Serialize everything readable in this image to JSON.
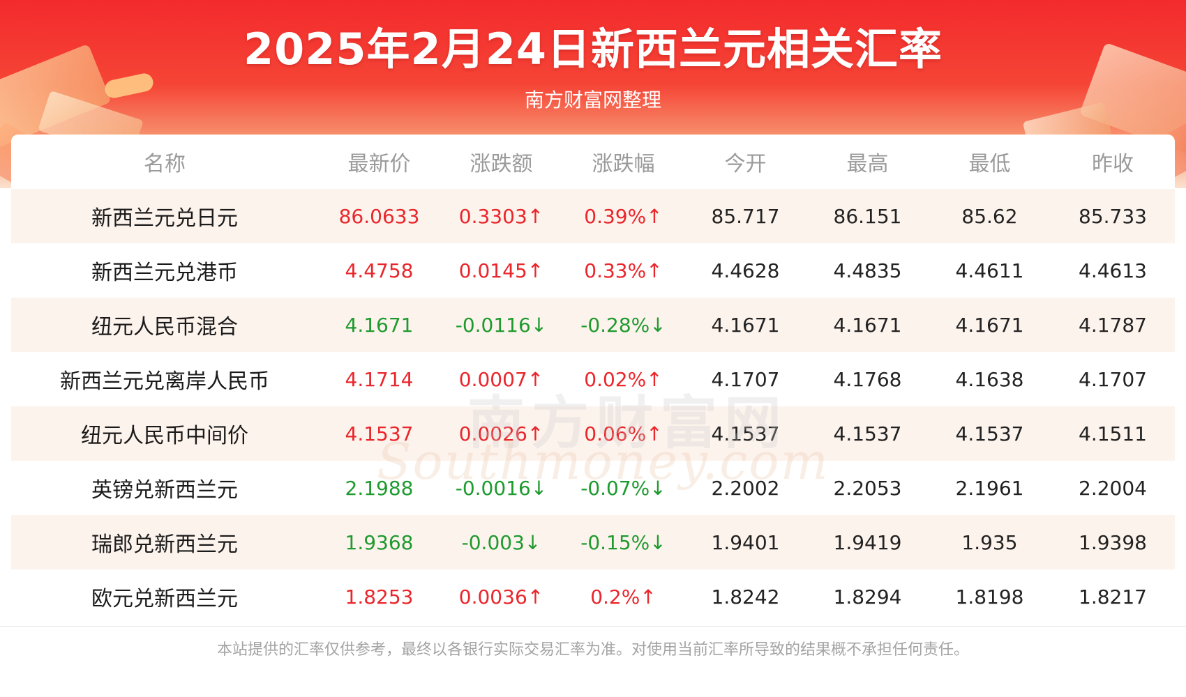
{
  "header": {
    "title": "2025年2月24日新西兰元相关汇率",
    "subtitle": "南方财富网整理"
  },
  "colors": {
    "up": "#e9262b",
    "down": "#1e9a2e",
    "neutral": "#222222"
  },
  "table": {
    "columns": [
      "名称",
      "最新价",
      "涨跌额",
      "涨跌幅",
      "今开",
      "最高",
      "最低",
      "昨收"
    ],
    "rows": [
      {
        "name": "新西兰元兑日元",
        "latest": "86.0633",
        "change": "0.3303↑",
        "pct": "0.39%↑",
        "open": "85.717",
        "high": "86.151",
        "low": "85.62",
        "prev": "85.733",
        "dir": "up"
      },
      {
        "name": "新西兰元兑港币",
        "latest": "4.4758",
        "change": "0.0145↑",
        "pct": "0.33%↑",
        "open": "4.4628",
        "high": "4.4835",
        "low": "4.4611",
        "prev": "4.4613",
        "dir": "up"
      },
      {
        "name": "纽元人民币混合",
        "latest": "4.1671",
        "change": "-0.0116↓",
        "pct": "-0.28%↓",
        "open": "4.1671",
        "high": "4.1671",
        "low": "4.1671",
        "prev": "4.1787",
        "dir": "down"
      },
      {
        "name": "新西兰元兑离岸人民币",
        "latest": "4.1714",
        "change": "0.0007↑",
        "pct": "0.02%↑",
        "open": "4.1707",
        "high": "4.1768",
        "low": "4.1638",
        "prev": "4.1707",
        "dir": "up"
      },
      {
        "name": "纽元人民币中间价",
        "latest": "4.1537",
        "change": "0.0026↑",
        "pct": "0.06%↑",
        "open": "4.1537",
        "high": "4.1537",
        "low": "4.1537",
        "prev": "4.1511",
        "dir": "up"
      },
      {
        "name": "英镑兑新西兰元",
        "latest": "2.1988",
        "change": "-0.0016↓",
        "pct": "-0.07%↓",
        "open": "2.2002",
        "high": "2.2053",
        "low": "2.1961",
        "prev": "2.2004",
        "dir": "down"
      },
      {
        "name": "瑞郎兑新西兰元",
        "latest": "1.9368",
        "change": "-0.003↓",
        "pct": "-0.15%↓",
        "open": "1.9401",
        "high": "1.9419",
        "low": "1.935",
        "prev": "1.9398",
        "dir": "down"
      },
      {
        "name": "欧元兑新西兰元",
        "latest": "1.8253",
        "change": "0.0036↑",
        "pct": "0.2%↑",
        "open": "1.8242",
        "high": "1.8294",
        "low": "1.8198",
        "prev": "1.8217",
        "dir": "up"
      }
    ]
  },
  "watermark": {
    "cn": "南方财富网",
    "en": "Southmoney.com"
  },
  "footer": {
    "disclaimer": "本站提供的汇率仅供参考，最终以各银行实际交易汇率为准。对使用当前汇率所导致的结果概不承担任何责任。"
  }
}
